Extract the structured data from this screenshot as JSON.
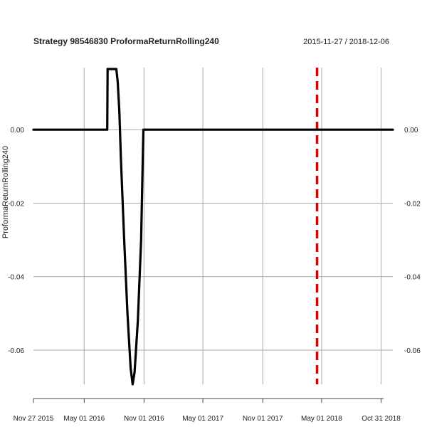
{
  "header": {
    "title": "Strategy 98546830 ProformaReturnRolling240",
    "date_range": "2015-11-27 / 2018-12-06"
  },
  "chart_data": {
    "type": "line",
    "title": "Strategy 98546830 ProformaReturnRolling240",
    "subtitle": "2015-11-27 / 2018-12-06",
    "xlabel": "",
    "ylabel": "ProformaReturnRolling240",
    "x_range": [
      "2015-11-27",
      "2018-12-06"
    ],
    "ylim": [
      -0.0693,
      0.0165
    ],
    "x_ticks": [
      {
        "date": "2015-11-27",
        "label": "Nov 27 2015"
      },
      {
        "date": "2016-05-01",
        "label": "May 01 2016"
      },
      {
        "date": "2016-11-01",
        "label": "Nov 01 2016"
      },
      {
        "date": "2017-05-01",
        "label": "May 01 2017"
      },
      {
        "date": "2017-11-01",
        "label": "Nov 01 2017"
      },
      {
        "date": "2018-05-01",
        "label": "May 01 2018"
      },
      {
        "date": "2018-10-31",
        "label": "Oct 31 2018"
      }
    ],
    "y_ticks": [
      {
        "value": 0.0,
        "label": "0.00"
      },
      {
        "value": -0.02,
        "label": "-0.02"
      },
      {
        "value": -0.04,
        "label": "-0.04"
      },
      {
        "value": -0.06,
        "label": "-0.06"
      }
    ],
    "grid": true,
    "series": [
      {
        "color": "#000000",
        "points": [
          [
            "2015-11-27",
            0.0
          ],
          [
            "2016-07-11",
            0.0
          ],
          [
            "2016-07-12",
            0.0165
          ],
          [
            "2016-08-08",
            0.0165
          ],
          [
            "2016-08-12",
            0.013
          ],
          [
            "2016-08-17",
            0.005
          ],
          [
            "2016-08-22",
            -0.008
          ],
          [
            "2016-09-01",
            -0.03
          ],
          [
            "2016-09-11",
            -0.05
          ],
          [
            "2016-09-21",
            -0.065
          ],
          [
            "2016-09-27",
            -0.0693
          ],
          [
            "2016-10-03",
            -0.066
          ],
          [
            "2016-10-13",
            -0.052
          ],
          [
            "2016-10-23",
            -0.03
          ],
          [
            "2016-10-28",
            -0.008
          ],
          [
            "2016-10-30",
            0.0
          ],
          [
            "2018-12-06",
            0.0
          ]
        ]
      }
    ],
    "vertical_markers": [
      {
        "date": "2018-04-17",
        "color": "#dd0000",
        "style": "dashed"
      }
    ]
  }
}
